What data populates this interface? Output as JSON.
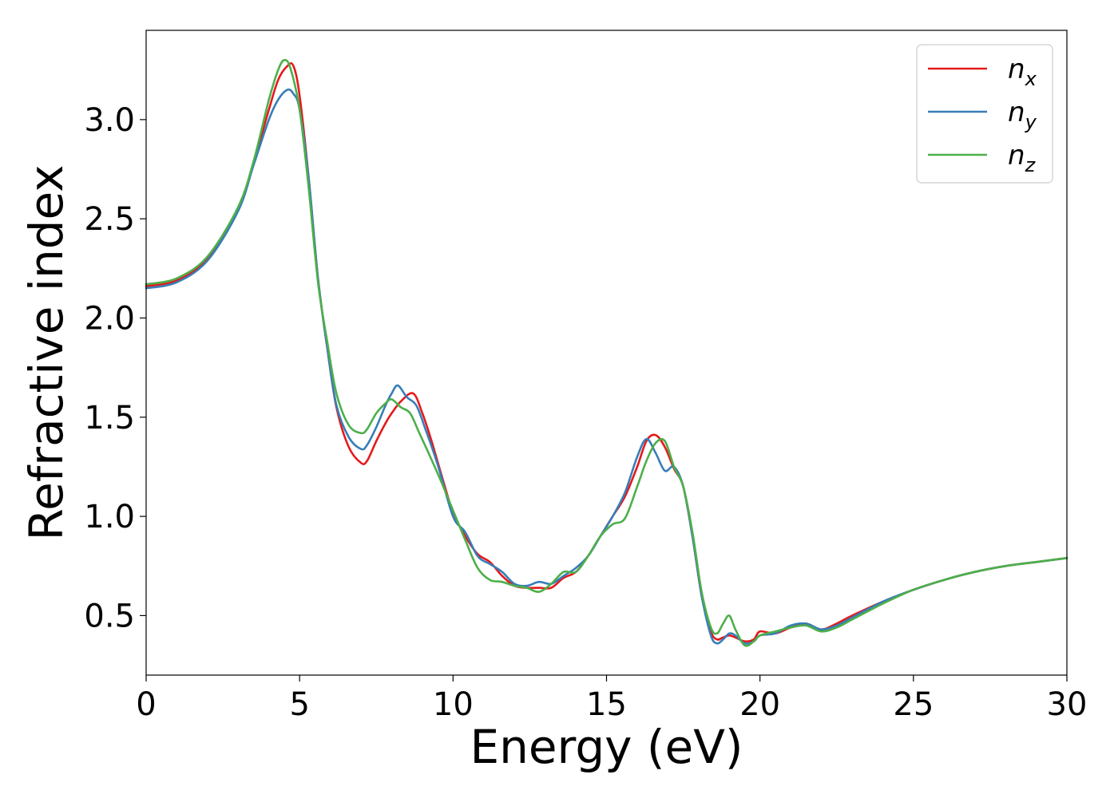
{
  "chart_data": {
    "type": "line",
    "title": "",
    "xlabel": "Energy (eV)",
    "ylabel": "Refractive index",
    "xlim": [
      0,
      30
    ],
    "ylim": [
      0.2,
      3.45
    ],
    "xticks": [
      0,
      5,
      10,
      15,
      20,
      25,
      30
    ],
    "xtick_labels": [
      "0",
      "5",
      "10",
      "15",
      "20",
      "25",
      "30"
    ],
    "yticks": [
      0.5,
      1.0,
      1.5,
      2.0,
      2.5,
      3.0
    ],
    "ytick_labels": [
      "0.5",
      "1.0",
      "1.5",
      "2.0",
      "2.5",
      "3.0"
    ],
    "grid": false,
    "legend_position": "top-right",
    "series": [
      {
        "name": "n",
        "subscript": "x",
        "color": "#e41a1c",
        "x": [
          0,
          1,
          2,
          3,
          3.5,
          4,
          4.3,
          4.6,
          4.8,
          5,
          5.3,
          5.6,
          5.9,
          6.2,
          6.6,
          7.0,
          7.2,
          7.5,
          7.8,
          8.0,
          8.3,
          8.7,
          9.0,
          9.3,
          9.6,
          10.0,
          10.4,
          10.8,
          11.2,
          11.6,
          12.0,
          12.4,
          12.8,
          13.2,
          13.6,
          14.0,
          14.4,
          14.8,
          15.2,
          15.6,
          16.0,
          16.3,
          16.6,
          16.9,
          17.2,
          17.5,
          17.8,
          18.1,
          18.4,
          18.6,
          18.8,
          19.0,
          19.2,
          19.5,
          19.8,
          20.0,
          20.5,
          21.0,
          21.5,
          22.0,
          22.5,
          23.0,
          24.0,
          25.0,
          26.0,
          27.0,
          28.0,
          29.0,
          30.0
        ],
        "y": [
          2.16,
          2.19,
          2.3,
          2.55,
          2.78,
          3.05,
          3.2,
          3.27,
          3.27,
          3.12,
          2.7,
          2.2,
          1.85,
          1.55,
          1.35,
          1.27,
          1.28,
          1.38,
          1.47,
          1.52,
          1.58,
          1.62,
          1.52,
          1.38,
          1.22,
          1.02,
          0.9,
          0.81,
          0.77,
          0.7,
          0.65,
          0.64,
          0.64,
          0.64,
          0.69,
          0.72,
          0.8,
          0.9,
          1.0,
          1.1,
          1.25,
          1.38,
          1.41,
          1.35,
          1.24,
          1.15,
          0.9,
          0.6,
          0.42,
          0.38,
          0.39,
          0.4,
          0.39,
          0.37,
          0.38,
          0.42,
          0.41,
          0.44,
          0.46,
          0.43,
          0.46,
          0.5,
          0.57,
          0.63,
          0.68,
          0.72,
          0.75,
          0.77,
          0.79
        ]
      },
      {
        "name": "n",
        "subscript": "y",
        "color": "#377eb8",
        "x": [
          0,
          1,
          2,
          3,
          3.5,
          4,
          4.3,
          4.6,
          4.8,
          5,
          5.3,
          5.6,
          5.9,
          6.2,
          6.6,
          7.0,
          7.2,
          7.5,
          7.8,
          8.0,
          8.2,
          8.5,
          8.8,
          9.1,
          9.5,
          10.0,
          10.4,
          10.8,
          11.2,
          11.6,
          12.0,
          12.4,
          12.8,
          13.2,
          13.6,
          14.0,
          14.4,
          14.8,
          15.2,
          15.6,
          16.0,
          16.3,
          16.6,
          16.9,
          17.2,
          17.5,
          17.8,
          18.1,
          18.4,
          18.6,
          18.8,
          19.0,
          19.2,
          19.5,
          19.8,
          20.0,
          20.5,
          21.0,
          21.5,
          22.0,
          22.5,
          23.0,
          24.0,
          25.0,
          26.0,
          27.0,
          28.0,
          29.0,
          30.0
        ],
        "y": [
          2.15,
          2.18,
          2.29,
          2.54,
          2.77,
          3.0,
          3.1,
          3.15,
          3.13,
          3.05,
          2.7,
          2.2,
          1.85,
          1.56,
          1.4,
          1.34,
          1.36,
          1.45,
          1.56,
          1.62,
          1.66,
          1.6,
          1.56,
          1.44,
          1.26,
          1.0,
          0.92,
          0.8,
          0.76,
          0.72,
          0.66,
          0.65,
          0.67,
          0.66,
          0.7,
          0.74,
          0.8,
          0.9,
          1.0,
          1.12,
          1.3,
          1.39,
          1.32,
          1.23,
          1.25,
          1.15,
          0.9,
          0.6,
          0.4,
          0.36,
          0.38,
          0.41,
          0.4,
          0.36,
          0.37,
          0.4,
          0.41,
          0.45,
          0.46,
          0.43,
          0.45,
          0.49,
          0.57,
          0.63,
          0.68,
          0.72,
          0.75,
          0.77,
          0.79
        ]
      },
      {
        "name": "n",
        "subscript": "z",
        "color": "#4daf4a",
        "x": [
          0,
          1,
          2,
          3,
          3.5,
          4,
          4.3,
          4.5,
          4.7,
          5,
          5.3,
          5.6,
          5.9,
          6.2,
          6.6,
          7.0,
          7.2,
          7.5,
          7.8,
          8.0,
          8.3,
          8.6,
          8.9,
          9.2,
          9.6,
          10.0,
          10.4,
          10.8,
          11.2,
          11.6,
          12.0,
          12.4,
          12.8,
          13.2,
          13.6,
          14.0,
          14.4,
          14.8,
          15.2,
          15.6,
          16.0,
          16.3,
          16.6,
          16.9,
          17.2,
          17.5,
          17.8,
          18.1,
          18.4,
          18.6,
          18.8,
          19.0,
          19.2,
          19.5,
          19.8,
          20.0,
          20.5,
          21.0,
          21.5,
          22.0,
          22.5,
          23.0,
          24.0,
          25.0,
          26.0,
          27.0,
          28.0,
          29.0,
          30.0
        ],
        "y": [
          2.17,
          2.2,
          2.31,
          2.56,
          2.79,
          3.1,
          3.25,
          3.3,
          3.26,
          3.05,
          2.65,
          2.18,
          1.88,
          1.62,
          1.46,
          1.42,
          1.44,
          1.52,
          1.57,
          1.59,
          1.55,
          1.52,
          1.42,
          1.32,
          1.18,
          1.03,
          0.88,
          0.74,
          0.68,
          0.67,
          0.65,
          0.64,
          0.62,
          0.66,
          0.72,
          0.72,
          0.8,
          0.9,
          0.96,
          0.99,
          1.15,
          1.28,
          1.37,
          1.38,
          1.25,
          1.15,
          0.92,
          0.62,
          0.44,
          0.41,
          0.46,
          0.5,
          0.43,
          0.35,
          0.37,
          0.4,
          0.42,
          0.44,
          0.45,
          0.42,
          0.44,
          0.48,
          0.56,
          0.63,
          0.68,
          0.72,
          0.75,
          0.77,
          0.79
        ]
      }
    ]
  }
}
